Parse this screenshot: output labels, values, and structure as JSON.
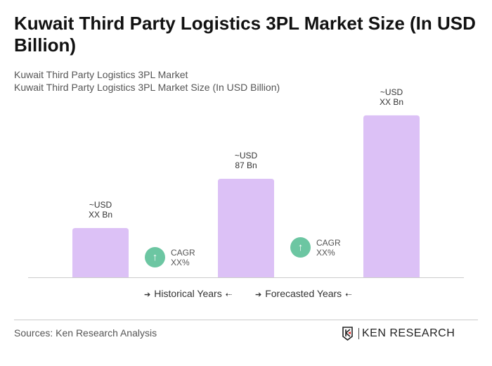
{
  "title": "Kuwait Third Party Logistics 3PL Market Size (In USD Billion)",
  "subtitle1": "Kuwait Third Party Logistics 3PL Market",
  "subtitle2": "Kuwait Third Party Logistics 3PL Market Size (In USD Billion)",
  "chart_data": {
    "type": "bar",
    "categories": [
      "",
      "",
      ""
    ],
    "values": [
      43.5,
      87,
      143
    ],
    "data_labels": [
      [
        "~USD",
        "XX Bn"
      ],
      [
        "~USD",
        "87 Bn"
      ],
      [
        "~USD",
        "XX Bn"
      ]
    ],
    "bar_color": "#dcc1f6",
    "cagr": [
      {
        "label": "CAGR",
        "value": "XX%"
      },
      {
        "label": "CAGR",
        "value": "XX%"
      }
    ],
    "cagr_color": "#6cc6a2",
    "legend": [
      "Historical Years",
      "Forecasted Years"
    ],
    "grid": false
  },
  "source": "Sources: Ken Research Analysis",
  "logo_text": "KEN RESEARCH"
}
